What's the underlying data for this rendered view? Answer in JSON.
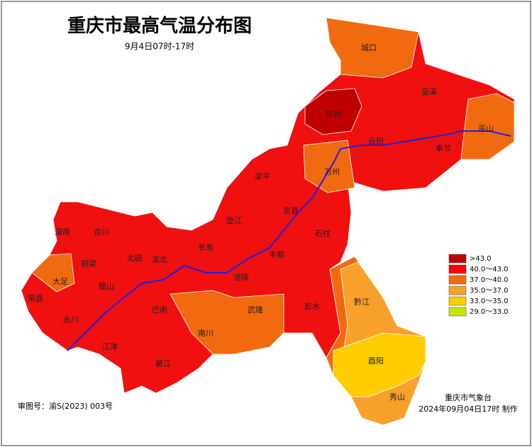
{
  "header": {
    "title": "重庆市最高气温分布图",
    "subtitle": "9月4日07时-17时"
  },
  "legend": {
    "items": [
      {
        "label": ">43.0",
        "color": "#c00000"
      },
      {
        "label": "40.0～43.0",
        "color": "#ff0000"
      },
      {
        "label": "37.0～40.0",
        "color": "#f26a10"
      },
      {
        "label": "35.0～37.0",
        "color": "#f8a02c"
      },
      {
        "label": "33.0～35.0",
        "color": "#ffcc00"
      },
      {
        "label": "29.0～33.0",
        "color": "#c8e600"
      }
    ]
  },
  "districts": [
    "城口",
    "巫溪",
    "开州",
    "巫山",
    "云阳",
    "奉节",
    "梁平",
    "万州",
    "潼南",
    "合川",
    "忠县",
    "垫江",
    "石柱",
    "大足",
    "铜梁",
    "北碚",
    "渝北",
    "长寿",
    "丰都",
    "涪陵",
    "璧山",
    "荣昌",
    "永川",
    "巴南",
    "武隆",
    "黔江",
    "彭水",
    "南川",
    "江津",
    "綦江",
    "酉阳",
    "秀山"
  ],
  "footer": {
    "approval": "审图号：渝S(2023) 003号",
    "issuer": "重庆市气象台",
    "made": "2024年09月04日17时 制作"
  }
}
